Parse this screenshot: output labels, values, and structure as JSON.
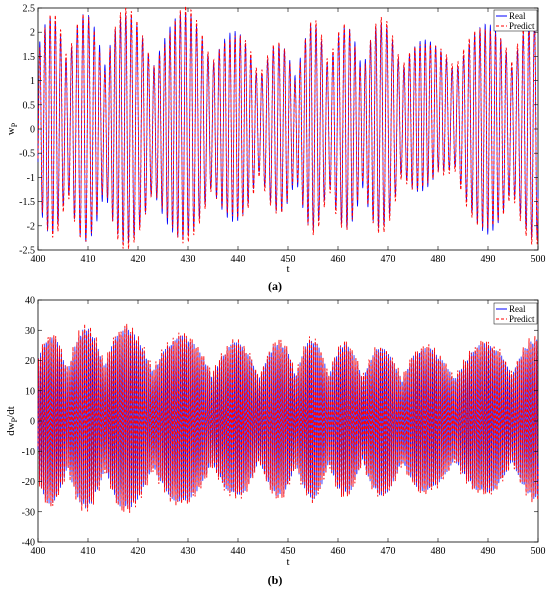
{
  "chart_data": [
    {
      "type": "line",
      "panel_label": "(a)",
      "xlabel": "t",
      "ylabel": "w",
      "ylabel_subscript": "P",
      "xlim": [
        400,
        500
      ],
      "ylim": [
        -2.5,
        2.5
      ],
      "xticks": [
        400,
        410,
        420,
        430,
        440,
        450,
        460,
        470,
        480,
        490,
        500
      ],
      "yticks": [
        -2.5,
        -2,
        -1.5,
        -1,
        -0.5,
        0,
        0.5,
        1,
        1.5,
        2,
        2.5
      ],
      "grid": false,
      "legend_position": "top-right",
      "series": [
        {
          "name": "Real",
          "color": "#0000ff",
          "style": "solid",
          "description_values": "oscillates between about -2.4 and 2.45; regular large oscillations 400–440, irregular 440–470, positive-biased 470–485"
        },
        {
          "name": "Predict",
          "color": "#ff0000",
          "style": "dashed"
        }
      ],
      "envelope": {
        "x": [
          400,
          405,
          410,
          415,
          420,
          425,
          430,
          435,
          440,
          445,
          450,
          455,
          460,
          465,
          470,
          475,
          480,
          485,
          490,
          495,
          500
        ],
        "upper": [
          2.3,
          2.35,
          2.4,
          2.4,
          2.35,
          2.3,
          2.45,
          2.3,
          2.0,
          1.7,
          1.8,
          2.2,
          2.1,
          2.2,
          2.2,
          1.9,
          1.8,
          2.0,
          2.2,
          2.3,
          2.3
        ],
        "lower": [
          -2.1,
          -2.25,
          -2.35,
          -2.4,
          -2.35,
          -2.3,
          -2.25,
          -2.2,
          -1.9,
          -1.6,
          -1.8,
          -2.1,
          -2.0,
          -2.2,
          -2.0,
          -1.5,
          -1.0,
          -1.8,
          -2.2,
          -2.25,
          -2.3
        ]
      }
    },
    {
      "type": "line",
      "panel_label": "(b)",
      "xlabel": "t",
      "ylabel": "dw",
      "ylabel_subscript": "P",
      "ylabel_suffix": "/dt",
      "xlim": [
        400,
        500
      ],
      "ylim": [
        -40,
        40
      ],
      "xticks": [
        400,
        410,
        420,
        430,
        440,
        450,
        460,
        470,
        480,
        490,
        500
      ],
      "yticks": [
        -40,
        -30,
        -20,
        -10,
        0,
        10,
        20,
        30,
        40
      ],
      "grid": false,
      "legend_position": "top-right",
      "series": [
        {
          "name": "Real",
          "color": "#0000ff",
          "style": "solid"
        },
        {
          "name": "Predict",
          "color": "#ff0000",
          "style": "dashed"
        }
      ],
      "envelope": {
        "x": [
          400,
          405,
          410,
          415,
          420,
          425,
          430,
          435,
          440,
          445,
          450,
          455,
          460,
          465,
          470,
          475,
          480,
          485,
          490,
          495,
          500
        ],
        "upper": [
          28,
          29,
          31,
          32,
          30,
          29,
          28,
          27,
          26,
          25,
          27,
          27,
          26,
          25,
          24,
          25,
          24,
          25,
          26,
          27,
          27
        ],
        "lower": [
          -27,
          -28,
          -29,
          -30,
          -29,
          -28,
          -27,
          -26,
          -25,
          -24,
          -26,
          -26,
          -25,
          -24,
          -25,
          -24,
          -23,
          -24,
          -24,
          -25,
          -26
        ]
      }
    }
  ]
}
